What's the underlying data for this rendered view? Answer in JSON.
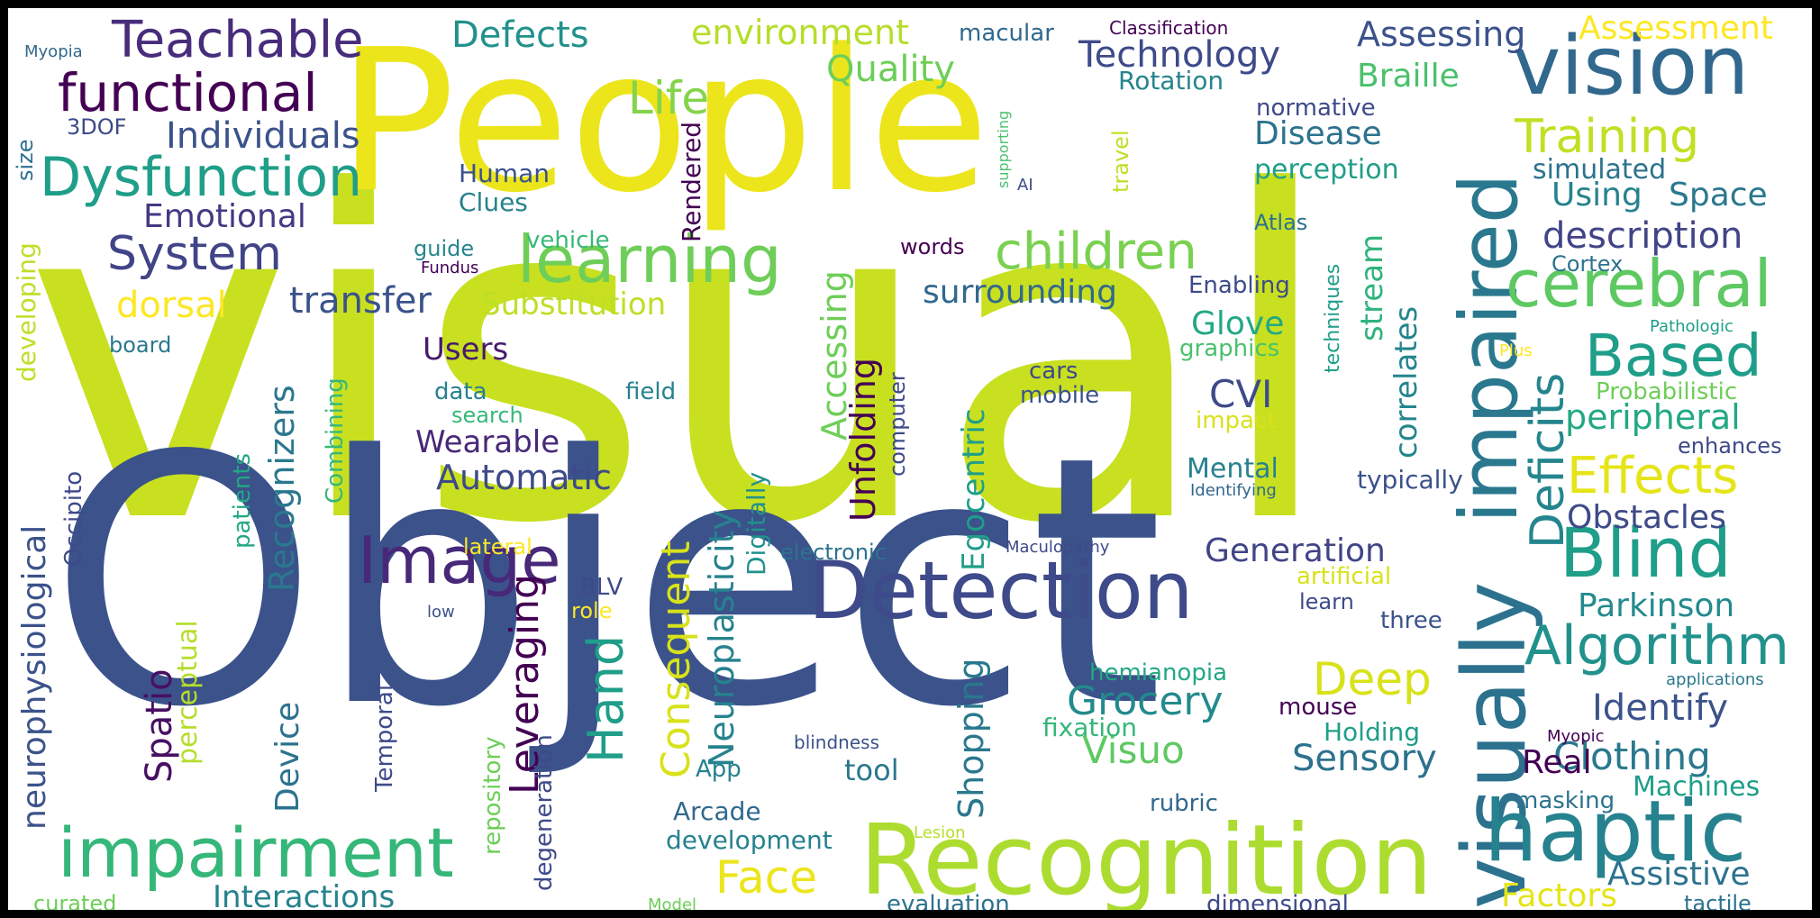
{
  "colors": {
    "dark_purple": "#440154",
    "indigo": "#482878",
    "slate_blue": "#3e4a89",
    "steel_blue": "#31688e",
    "teal_blue": "#26828e",
    "teal": "#1f9e89",
    "green": "#35b779",
    "light_green": "#6ece58",
    "lime": "#b5de2b",
    "yellow": "#fde725",
    "yellow_green": "#d8e219",
    "background": "#ffffff"
  },
  "words": [
    "visual",
    "Object",
    "People",
    "Recognition",
    "Detection",
    "visually",
    "impaired",
    "haptic",
    "vision",
    "impairment",
    "Image",
    "learning",
    "cerebral",
    "Blind",
    "Algorithm",
    "children",
    "Dysfunction",
    "functional",
    "Teachable",
    "System",
    "Based",
    "Deep",
    "Face",
    "Effects",
    "Training",
    "Deficits",
    "Hand",
    "Life",
    "Defects",
    "environment",
    "Quality",
    "Technology",
    "Assessing",
    "Assessment",
    "Braille",
    "Individuals",
    "Emotional",
    "Clothing",
    "Sensory",
    "Grocery",
    "Shopping",
    "Neuroplasticity",
    "Consequent",
    "Leveraging",
    "Spatio",
    "Visuo",
    "Identify",
    "Assistive",
    "Parkinson",
    "Obstacles",
    "peripheral",
    "description",
    "Using",
    "Space",
    "Disease",
    "perception",
    "simulated",
    "Interactions",
    "Factors",
    "Recognizers",
    "Automatic",
    "Wearable",
    "Users",
    "CVI",
    "Glove",
    "surrounding",
    "transfer",
    "Substitution",
    "dorsal",
    "Generation",
    "Unfolding",
    "Accessing",
    "Egocentric",
    "correlates",
    "stream",
    "neurophysiological",
    "Device",
    "tool",
    "development",
    "Real",
    "Machines",
    "Rotation",
    "normative",
    "macular",
    "Classification",
    "Myopia",
    "3DOF",
    "size",
    "developing",
    "Human",
    "Clues",
    "guide",
    "Fundus",
    "vehicle",
    "Rendered",
    "board",
    "Combining",
    "patients",
    "Occipito",
    "lateral",
    "perceptual",
    "Temporal",
    "repository",
    "degeneration",
    "Arcade",
    "App",
    "blindness",
    "fixation",
    "hemianopia",
    "mouse",
    "Holding",
    "rubric",
    "evaluation",
    "dimensional",
    "curated",
    "Model",
    "Lesion",
    "BLV",
    "role",
    "low",
    "electronic",
    "Maculopathy",
    "Digitally",
    "Mental",
    "impact",
    "Identifying",
    "typically",
    "enhances",
    "Probabilistic",
    "Plus",
    "Pathologic",
    "Cortex",
    "Enabling",
    "graphics",
    "techniques",
    "cars",
    "mobile",
    "computer",
    "data",
    "search",
    "field",
    "Atlas",
    "words",
    "supporting",
    "AI",
    "travel",
    "learn",
    "three",
    "artificial",
    "applications",
    "Myopic",
    "masking",
    "tactile"
  ]
}
